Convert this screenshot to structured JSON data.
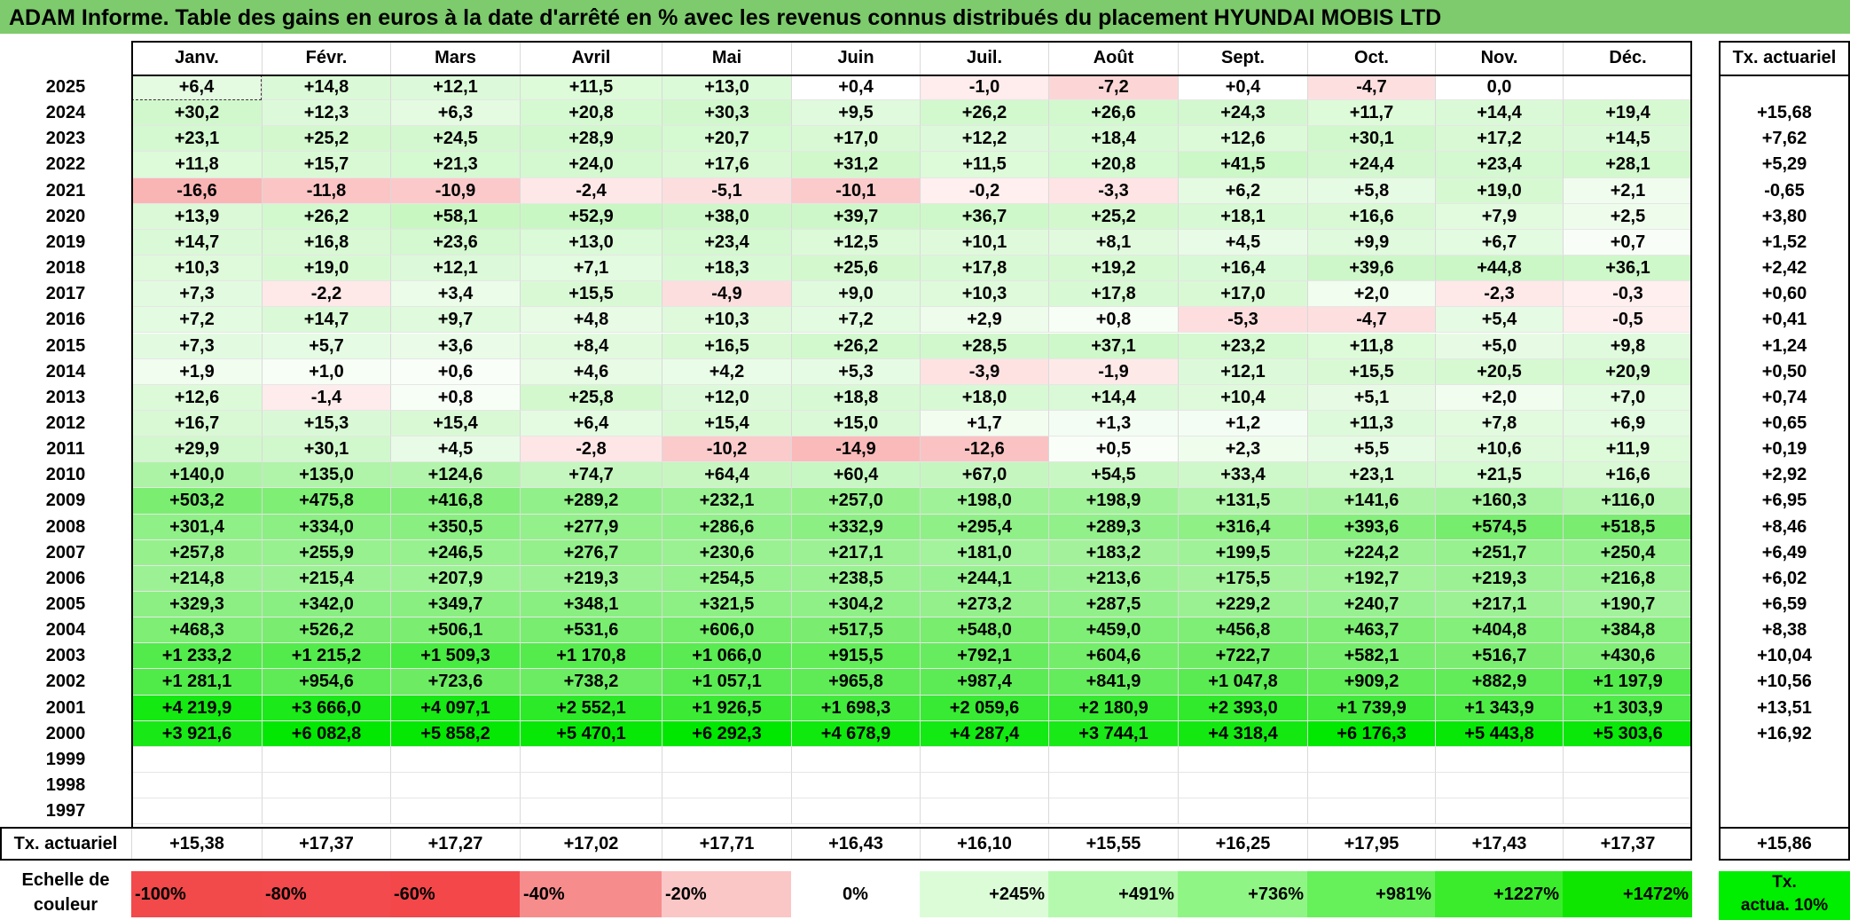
{
  "title": "ADAM Informe. Table des gains en euros à la date d'arrêté en % avec les revenus connus distribués du placement HYUNDAI MOBIS LTD",
  "months": [
    "Janv.",
    "Févr.",
    "Mars",
    "Avril",
    "Mai",
    "Juin",
    "Juil.",
    "Août",
    "Sept.",
    "Oct.",
    "Nov.",
    "Déc."
  ],
  "right_header": "Tx. actuariel",
  "rows": [
    {
      "year": "2025",
      "values": [
        "+6,4",
        "+14,8",
        "+12,1",
        "+11,5",
        "+13,0",
        "+0,4",
        "-1,0",
        "-7,2",
        "+0,4",
        "-4,7",
        "0,0",
        ""
      ],
      "tx": ""
    },
    {
      "year": "2024",
      "values": [
        "+30,2",
        "+12,3",
        "+6,3",
        "+20,8",
        "+30,3",
        "+9,5",
        "+26,2",
        "+26,6",
        "+24,3",
        "+11,7",
        "+14,4",
        "+19,4"
      ],
      "tx": "+15,68"
    },
    {
      "year": "2023",
      "values": [
        "+23,1",
        "+25,2",
        "+24,5",
        "+28,9",
        "+20,7",
        "+17,0",
        "+12,2",
        "+18,4",
        "+12,6",
        "+30,1",
        "+17,2",
        "+14,5"
      ],
      "tx": "+7,62"
    },
    {
      "year": "2022",
      "values": [
        "+11,8",
        "+15,7",
        "+21,3",
        "+24,0",
        "+17,6",
        "+31,2",
        "+11,5",
        "+20,8",
        "+41,5",
        "+24,4",
        "+23,4",
        "+28,1"
      ],
      "tx": "+5,29"
    },
    {
      "year": "2021",
      "values": [
        "-16,6",
        "-11,8",
        "-10,9",
        "-2,4",
        "-5,1",
        "-10,1",
        "-0,2",
        "-3,3",
        "+6,2",
        "+5,8",
        "+19,0",
        "+2,1"
      ],
      "tx": "-0,65"
    },
    {
      "year": "2020",
      "values": [
        "+13,9",
        "+26,2",
        "+58,1",
        "+52,9",
        "+38,0",
        "+39,7",
        "+36,7",
        "+25,2",
        "+18,1",
        "+16,6",
        "+7,9",
        "+2,5"
      ],
      "tx": "+3,80"
    },
    {
      "year": "2019",
      "values": [
        "+14,7",
        "+16,8",
        "+23,6",
        "+13,0",
        "+23,4",
        "+12,5",
        "+10,1",
        "+8,1",
        "+4,5",
        "+9,9",
        "+6,7",
        "+0,7"
      ],
      "tx": "+1,52"
    },
    {
      "year": "2018",
      "values": [
        "+10,3",
        "+19,0",
        "+12,1",
        "+7,1",
        "+18,3",
        "+25,6",
        "+17,8",
        "+19,2",
        "+16,4",
        "+39,6",
        "+44,8",
        "+36,1"
      ],
      "tx": "+2,42"
    },
    {
      "year": "2017",
      "values": [
        "+7,3",
        "-2,2",
        "+3,4",
        "+15,5",
        "-4,9",
        "+9,0",
        "+10,3",
        "+17,8",
        "+17,0",
        "+2,0",
        "-2,3",
        "-0,3"
      ],
      "tx": "+0,60"
    },
    {
      "year": "2016",
      "values": [
        "+7,2",
        "+14,7",
        "+9,7",
        "+4,8",
        "+10,3",
        "+7,2",
        "+2,9",
        "+0,8",
        "-5,3",
        "-4,7",
        "+5,4",
        "-0,5"
      ],
      "tx": "+0,41"
    },
    {
      "year": "2015",
      "values": [
        "+7,3",
        "+5,7",
        "+3,6",
        "+8,4",
        "+16,5",
        "+26,2",
        "+28,5",
        "+37,1",
        "+23,2",
        "+11,8",
        "+5,0",
        "+9,8"
      ],
      "tx": "+1,24"
    },
    {
      "year": "2014",
      "values": [
        "+1,9",
        "+1,0",
        "+0,6",
        "+4,6",
        "+4,2",
        "+5,3",
        "-3,9",
        "-1,9",
        "+12,1",
        "+15,5",
        "+20,5",
        "+20,9"
      ],
      "tx": "+0,50"
    },
    {
      "year": "2013",
      "values": [
        "+12,6",
        "-1,4",
        "+0,8",
        "+25,8",
        "+12,0",
        "+18,8",
        "+18,0",
        "+14,4",
        "+10,4",
        "+5,1",
        "+2,0",
        "+7,0"
      ],
      "tx": "+0,74"
    },
    {
      "year": "2012",
      "values": [
        "+16,7",
        "+15,3",
        "+15,4",
        "+6,4",
        "+15,4",
        "+15,0",
        "+1,7",
        "+1,3",
        "+1,2",
        "+11,3",
        "+7,8",
        "+6,9"
      ],
      "tx": "+0,65"
    },
    {
      "year": "2011",
      "values": [
        "+29,9",
        "+30,1",
        "+4,5",
        "-2,8",
        "-10,2",
        "-14,9",
        "-12,6",
        "+0,5",
        "+2,3",
        "+5,5",
        "+10,6",
        "+11,9"
      ],
      "tx": "+0,19"
    },
    {
      "year": "2010",
      "values": [
        "+140,0",
        "+135,0",
        "+124,6",
        "+74,7",
        "+64,4",
        "+60,4",
        "+67,0",
        "+54,5",
        "+33,4",
        "+23,1",
        "+21,5",
        "+16,6"
      ],
      "tx": "+2,92"
    },
    {
      "year": "2009",
      "values": [
        "+503,2",
        "+475,8",
        "+416,8",
        "+289,2",
        "+232,1",
        "+257,0",
        "+198,0",
        "+198,9",
        "+131,5",
        "+141,6",
        "+160,3",
        "+116,0"
      ],
      "tx": "+6,95"
    },
    {
      "year": "2008",
      "values": [
        "+301,4",
        "+334,0",
        "+350,5",
        "+277,9",
        "+286,6",
        "+332,9",
        "+295,4",
        "+289,3",
        "+316,4",
        "+393,6",
        "+574,5",
        "+518,5"
      ],
      "tx": "+8,46"
    },
    {
      "year": "2007",
      "values": [
        "+257,8",
        "+255,9",
        "+246,5",
        "+276,7",
        "+230,6",
        "+217,1",
        "+181,0",
        "+183,2",
        "+199,5",
        "+224,2",
        "+251,7",
        "+250,4"
      ],
      "tx": "+6,49"
    },
    {
      "year": "2006",
      "values": [
        "+214,8",
        "+215,4",
        "+207,9",
        "+219,3",
        "+254,5",
        "+238,5",
        "+244,1",
        "+213,6",
        "+175,5",
        "+192,7",
        "+219,3",
        "+216,8"
      ],
      "tx": "+6,02"
    },
    {
      "year": "2005",
      "values": [
        "+329,3",
        "+342,0",
        "+349,7",
        "+348,1",
        "+321,5",
        "+304,2",
        "+273,2",
        "+287,5",
        "+229,2",
        "+240,7",
        "+217,1",
        "+190,7"
      ],
      "tx": "+6,59"
    },
    {
      "year": "2004",
      "values": [
        "+468,3",
        "+526,2",
        "+506,1",
        "+531,6",
        "+606,0",
        "+517,5",
        "+548,0",
        "+459,0",
        "+456,8",
        "+463,7",
        "+404,8",
        "+384,8"
      ],
      "tx": "+8,38"
    },
    {
      "year": "2003",
      "values": [
        "+1 233,2",
        "+1 215,2",
        "+1 509,3",
        "+1 170,8",
        "+1 066,0",
        "+915,5",
        "+792,1",
        "+604,6",
        "+722,7",
        "+582,1",
        "+516,7",
        "+430,6"
      ],
      "tx": "+10,04"
    },
    {
      "year": "2002",
      "values": [
        "+1 281,1",
        "+954,6",
        "+723,6",
        "+738,2",
        "+1 057,1",
        "+965,8",
        "+987,4",
        "+841,9",
        "+1 047,8",
        "+909,2",
        "+882,9",
        "+1 197,9"
      ],
      "tx": "+10,56"
    },
    {
      "year": "2001",
      "values": [
        "+4 219,9",
        "+3 666,0",
        "+4 097,1",
        "+2 552,1",
        "+1 926,5",
        "+1 698,3",
        "+2 059,6",
        "+2 180,9",
        "+2 393,0",
        "+1 739,9",
        "+1 343,9",
        "+1 303,9"
      ],
      "tx": "+13,51"
    },
    {
      "year": "2000",
      "values": [
        "+3 921,6",
        "+6 082,8",
        "+5 858,2",
        "+5 470,1",
        "+6 292,3",
        "+4 678,9",
        "+4 287,4",
        "+3 744,1",
        "+4 318,4",
        "+6 176,3",
        "+5 443,8",
        "+5 303,6"
      ],
      "tx": "+16,92"
    },
    {
      "year": "1999",
      "values": [
        "",
        "",
        "",
        "",
        "",
        "",
        "",
        "",
        "",
        "",
        "",
        ""
      ],
      "tx": ""
    },
    {
      "year": "1998",
      "values": [
        "",
        "",
        "",
        "",
        "",
        "",
        "",
        "",
        "",
        "",
        "",
        ""
      ],
      "tx": ""
    },
    {
      "year": "1997",
      "values": [
        "",
        "",
        "",
        "",
        "",
        "",
        "",
        "",
        "",
        "",
        "",
        ""
      ],
      "tx": ""
    }
  ],
  "footer": {
    "label": "Tx. actuariel",
    "values": [
      "+15,38",
      "+17,37",
      "+17,27",
      "+17,02",
      "+17,71",
      "+16,43",
      "+16,10",
      "+15,55",
      "+16,25",
      "+17,95",
      "+17,43",
      "+17,37"
    ],
    "tx": "+15,86"
  },
  "legend": {
    "label_line1": "Echelle de",
    "label_line2": "couleur",
    "items": [
      {
        "text": "-100%",
        "color": "#f2494b",
        "align": "left"
      },
      {
        "text": "-80%",
        "color": "#f34a4d",
        "align": "left"
      },
      {
        "text": "-60%",
        "color": "#f3474a",
        "align": "left"
      },
      {
        "text": "-40%",
        "color": "#f78c8d",
        "align": "left"
      },
      {
        "text": "-20%",
        "color": "#fbc6c6",
        "align": "left"
      },
      {
        "text": "0%",
        "color": "#ffffff",
        "align": "center"
      },
      {
        "text": "+245%",
        "color": "#dcfcd8",
        "align": "right"
      },
      {
        "text": "+491%",
        "color": "#b5f9ae",
        "align": "right"
      },
      {
        "text": "+736%",
        "color": "#8ff585",
        "align": "right"
      },
      {
        "text": "+981%",
        "color": "#66f05a",
        "align": "right"
      },
      {
        "text": "+1227%",
        "color": "#3aec2c",
        "align": "right"
      },
      {
        "text": "+1472%",
        "color": "#0fe600",
        "align": "right"
      }
    ],
    "tx_line1": "Tx.",
    "tx_line2": "actua. 10%",
    "tx_color": "#00ee00"
  }
}
